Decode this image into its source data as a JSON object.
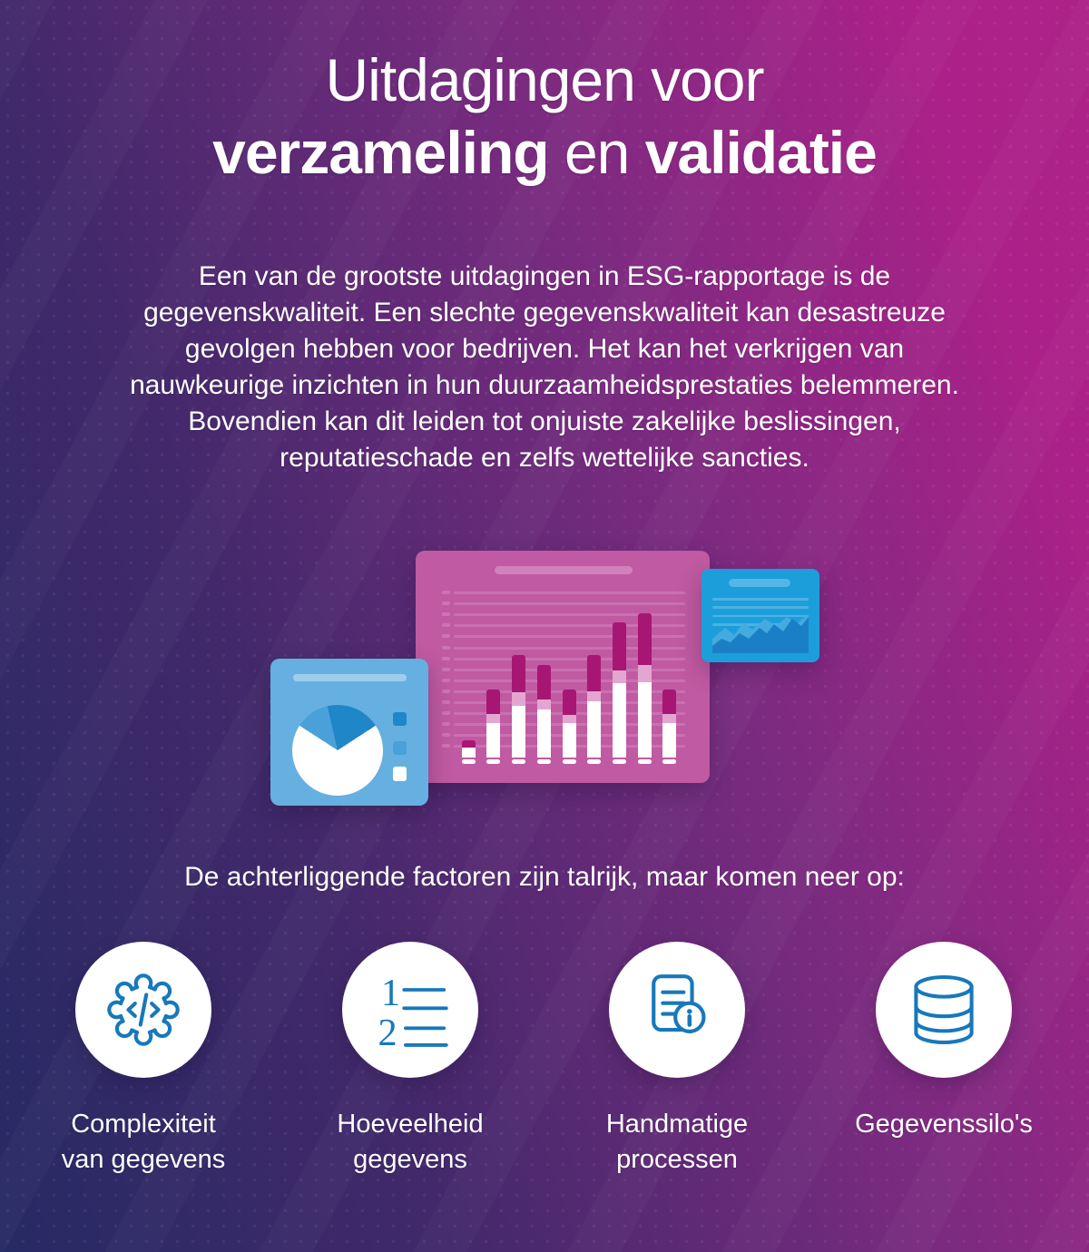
{
  "title": {
    "line1": "Uitdagingen voor",
    "line2_bold1": "verzameling",
    "line2_mid": " en ",
    "line2_bold2": "validatie"
  },
  "intro": {
    "lines": [
      "Een van de grootste uitdagingen in ESG-rapportage is de",
      "gegevenskwaliteit. Een slechte gegevenskwaliteit kan desastreuze",
      "gevolgen hebben voor bedrijven. Het kan het verkrijgen van",
      "nauwkeurige inzichten in hun duurzaamheidsprestaties belemmeren.",
      "Bovendien kan dit leiden tot onjuiste zakelijke beslissingen,",
      "reputatieschade en zelfs wettelijke sancties."
    ]
  },
  "factors_heading": "De achterliggende factoren zijn talrijk, maar komen neer op:",
  "factors": [
    {
      "icon": "gear-code-icon",
      "label_lines": [
        "Complexiteit",
        "van gegevens"
      ]
    },
    {
      "icon": "numbered-list-icon",
      "label_lines": [
        "Hoeveelheid",
        "gegevens"
      ]
    },
    {
      "icon": "document-info-icon",
      "label_lines": [
        "Handmatige",
        "processen"
      ]
    },
    {
      "icon": "database-icon",
      "label_lines": [
        "Gegevenssilo's"
      ]
    }
  ],
  "illustration": {
    "bar_chart": {
      "ruled_rows": 15,
      "bars": [
        {
          "white": 11,
          "pink": 0,
          "magenta": 8
        },
        {
          "white": 38,
          "pink": 10,
          "magenta": 27
        },
        {
          "white": 57,
          "pink": 15,
          "magenta": 41
        },
        {
          "white": 53,
          "pink": 11,
          "magenta": 38
        },
        {
          "white": 38,
          "pink": 9,
          "magenta": 28
        },
        {
          "white": 62,
          "pink": 11,
          "magenta": 40
        },
        {
          "white": 82,
          "pink": 14,
          "magenta": 53
        },
        {
          "white": 83,
          "pink": 19,
          "magenta": 57
        },
        {
          "white": 38,
          "pink": 10,
          "magenta": 27
        }
      ]
    },
    "line_chart": {
      "lines": 4
    }
  },
  "colors": {
    "background_navy": "#262a64",
    "background_purple": "#43296b",
    "background_magenta": "#ab2189",
    "text_white": "#ffffff",
    "panel_pink": "#c05aa2",
    "panel_pink_light": "#cd74b4",
    "panel_pink_pill": "#d280bb",
    "bar_magenta": "#a81673",
    "bar_light_pink": "#e3a6d0",
    "panel_blue_light": "#66b0e1",
    "panel_blue_pill": "#9ccded",
    "panel_azure": "#1c9edb",
    "panel_azure_pill": "#54b6e6",
    "azure_line": "#4db2e2",
    "area_back_blue": "#45aade",
    "area_front_blue": "#1b7fc6",
    "pie_dark_blue": "#1f86c8",
    "pie_mid_blue": "#4aa0d8",
    "icon_stroke": "#1878ba",
    "icon_circle_bg": "#ffffff"
  }
}
